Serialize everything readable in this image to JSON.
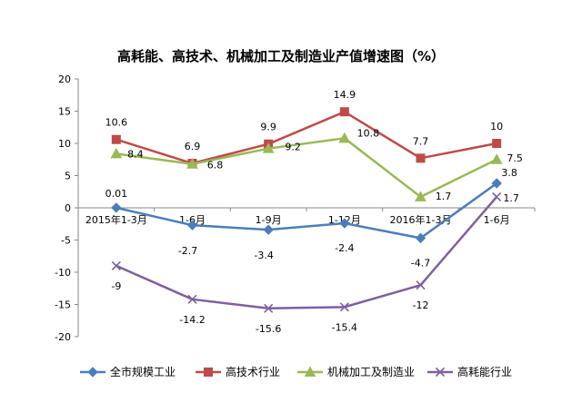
{
  "chart_data": {
    "type": "line",
    "title": "高耗能、高技术、机械加工及制造业产值增速图（%）",
    "categories": [
      "2015年1-3月",
      "1-6月",
      "1-9月",
      "1-12月",
      "2016年1-3月",
      "1-6月"
    ],
    "ylim": [
      -20,
      20
    ],
    "yticks": [
      20,
      15,
      10,
      5,
      0,
      -5,
      -10,
      -15,
      -20
    ],
    "ytick_labels": [
      "20",
      "15",
      "10",
      "5",
      "0",
      "-5",
      "-10",
      "-15",
      "-20"
    ],
    "grid": false,
    "legend_position": "bottom",
    "series": [
      {
        "name": "全市规模工业",
        "color": "#4a7ebb",
        "marker": "diamond",
        "values": [
          0.01,
          -2.7,
          -3.4,
          -2.4,
          -4.7,
          3.8
        ],
        "labels": [
          "0.01",
          "-2.7",
          "-3.4",
          "-2.4",
          "-4.7",
          "3.8"
        ]
      },
      {
        "name": "高技术行业",
        "color": "#be4b48",
        "marker": "square",
        "values": [
          10.6,
          6.9,
          9.9,
          14.9,
          7.7,
          10
        ],
        "labels": [
          "10.6",
          "6.9",
          "9.9",
          "14.9",
          "7.7",
          "10"
        ]
      },
      {
        "name": "机械加工及制造业",
        "color": "#98b954",
        "marker": "triangle",
        "values": [
          8.4,
          6.8,
          9.2,
          10.8,
          1.7,
          7.5
        ],
        "labels": [
          "8.4",
          "6.8",
          "9.2",
          "10.8",
          "1.7",
          "7.5"
        ]
      },
      {
        "name": "高耗能行业",
        "color": "#7d60a0",
        "marker": "x",
        "values": [
          -9,
          -14.2,
          -15.6,
          -15.4,
          -12,
          1.7
        ],
        "labels": [
          "-9",
          "-14.2",
          "-15.6",
          "-15.4",
          "-12",
          "1.7"
        ]
      }
    ]
  }
}
